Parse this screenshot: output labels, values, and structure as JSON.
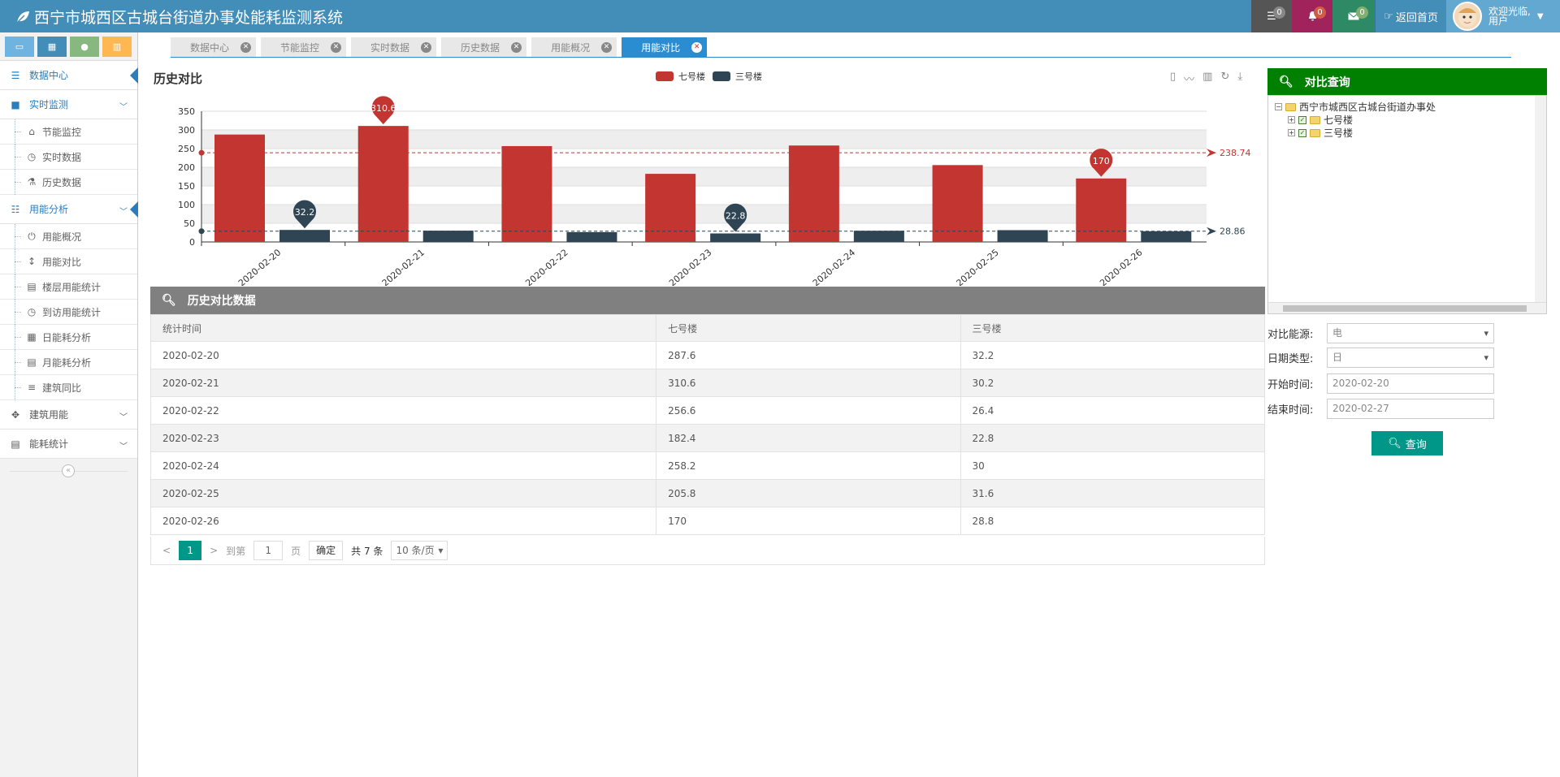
{
  "app": {
    "title": "西宁市城西区古城台街道办事处能耗监测系统"
  },
  "header": {
    "badges": {
      "tasks": "0",
      "notifications": "0",
      "messages": "0"
    },
    "home_label": "返回首页",
    "welcome_line1": "欢迎光临,",
    "welcome_line2": "用户"
  },
  "sidebar": {
    "items": {
      "data_center": "数据中心",
      "realtime": "实时监测",
      "energy_saving": "节能监控",
      "realtime_data": "实时数据",
      "history_data": "历史数据",
      "usage_analysis": "用能分析",
      "usage_overview": "用能概况",
      "usage_compare": "用能对比",
      "floor_stats": "楼层用能统计",
      "visit_stats": "到访用能统计",
      "daily_analysis": "日能耗分析",
      "monthly_analysis": "月能耗分析",
      "building_yoy": "建筑同比",
      "building_usage": "建筑用能",
      "energy_stats": "能耗统计"
    }
  },
  "tabs": [
    "数据中心",
    "节能监控",
    "实时数据",
    "历史数据",
    "用能概况",
    "用能对比"
  ],
  "chart": {
    "title": "历史对比",
    "legend": [
      "七号楼",
      "三号楼"
    ],
    "colors": {
      "series1": "#c23531",
      "series2": "#2f4554"
    },
    "marks": {
      "max1": "310.6",
      "max2": "32.2",
      "min1": "170",
      "min2": "22.8",
      "avg1": "238.74",
      "avg2": "28.86"
    }
  },
  "chart_data": {
    "type": "bar",
    "title": "历史对比",
    "categories": [
      "2020-02-20",
      "2020-02-21",
      "2020-02-22",
      "2020-02-23",
      "2020-02-24",
      "2020-02-25",
      "2020-02-26"
    ],
    "series": [
      {
        "name": "七号楼",
        "values": [
          287.6,
          310.6,
          256.6,
          182.4,
          258.2,
          205.8,
          170
        ]
      },
      {
        "name": "三号楼",
        "values": [
          32.2,
          30.2,
          26.4,
          22.8,
          30,
          31.6,
          28.8
        ]
      }
    ],
    "ylim": [
      0,
      350
    ],
    "yticks": [
      0,
      50,
      100,
      150,
      200,
      250,
      300,
      350
    ],
    "mark_lines": [
      238.74,
      28.86
    ],
    "legend_position": "top-center",
    "grid": true
  },
  "table": {
    "title": "历史对比数据",
    "headers": [
      "统计时间",
      "七号楼",
      "三号楼"
    ],
    "rows": [
      [
        "2020-02-20",
        "287.6",
        "32.2"
      ],
      [
        "2020-02-21",
        "310.6",
        "30.2"
      ],
      [
        "2020-02-22",
        "256.6",
        "26.4"
      ],
      [
        "2020-02-23",
        "182.4",
        "22.8"
      ],
      [
        "2020-02-24",
        "258.2",
        "30"
      ],
      [
        "2020-02-25",
        "205.8",
        "31.6"
      ],
      [
        "2020-02-26",
        "170",
        "28.8"
      ]
    ]
  },
  "pager": {
    "prev": "<",
    "current": "1",
    "next": ">",
    "goto": "到第",
    "page_value": "1",
    "page_unit": "页",
    "confirm": "确定",
    "total": "共 7 条",
    "page_size": "10 条/页"
  },
  "query": {
    "title": "对比查询",
    "tree": {
      "root": "西宁市城西区古城台街道办事处",
      "children": [
        "七号楼",
        "三号楼"
      ]
    },
    "energy_label": "对比能源:",
    "energy_value": "电",
    "date_type_label": "日期类型:",
    "date_type_value": "日",
    "start_label": "开始时间:",
    "start_value": "2020-02-20",
    "end_label": "结束时间:",
    "end_value": "2020-02-27",
    "button": "查询"
  }
}
